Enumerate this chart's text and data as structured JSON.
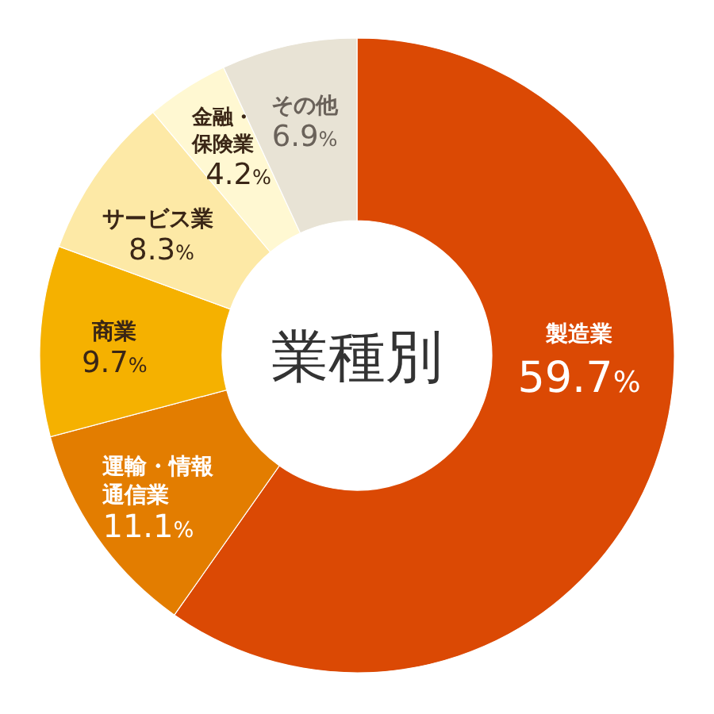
{
  "chart_data": {
    "type": "donut",
    "title": "業種別",
    "categories": [
      "製造業",
      "運輸・情報通信業",
      "商業",
      "サービス業",
      "金融・保険業",
      "その他"
    ],
    "values": [
      59.7,
      11.1,
      9.7,
      8.3,
      4.2,
      6.9
    ],
    "colors": [
      "#db4904",
      "#e37d00",
      "#f5b100",
      "#fde9a6",
      "#fff8d2",
      "#e8e3d5"
    ],
    "value_labels": [
      "59.7%",
      "11.1%",
      "9.7%",
      "8.3%",
      "4.2%",
      "6.9%"
    ]
  }
}
